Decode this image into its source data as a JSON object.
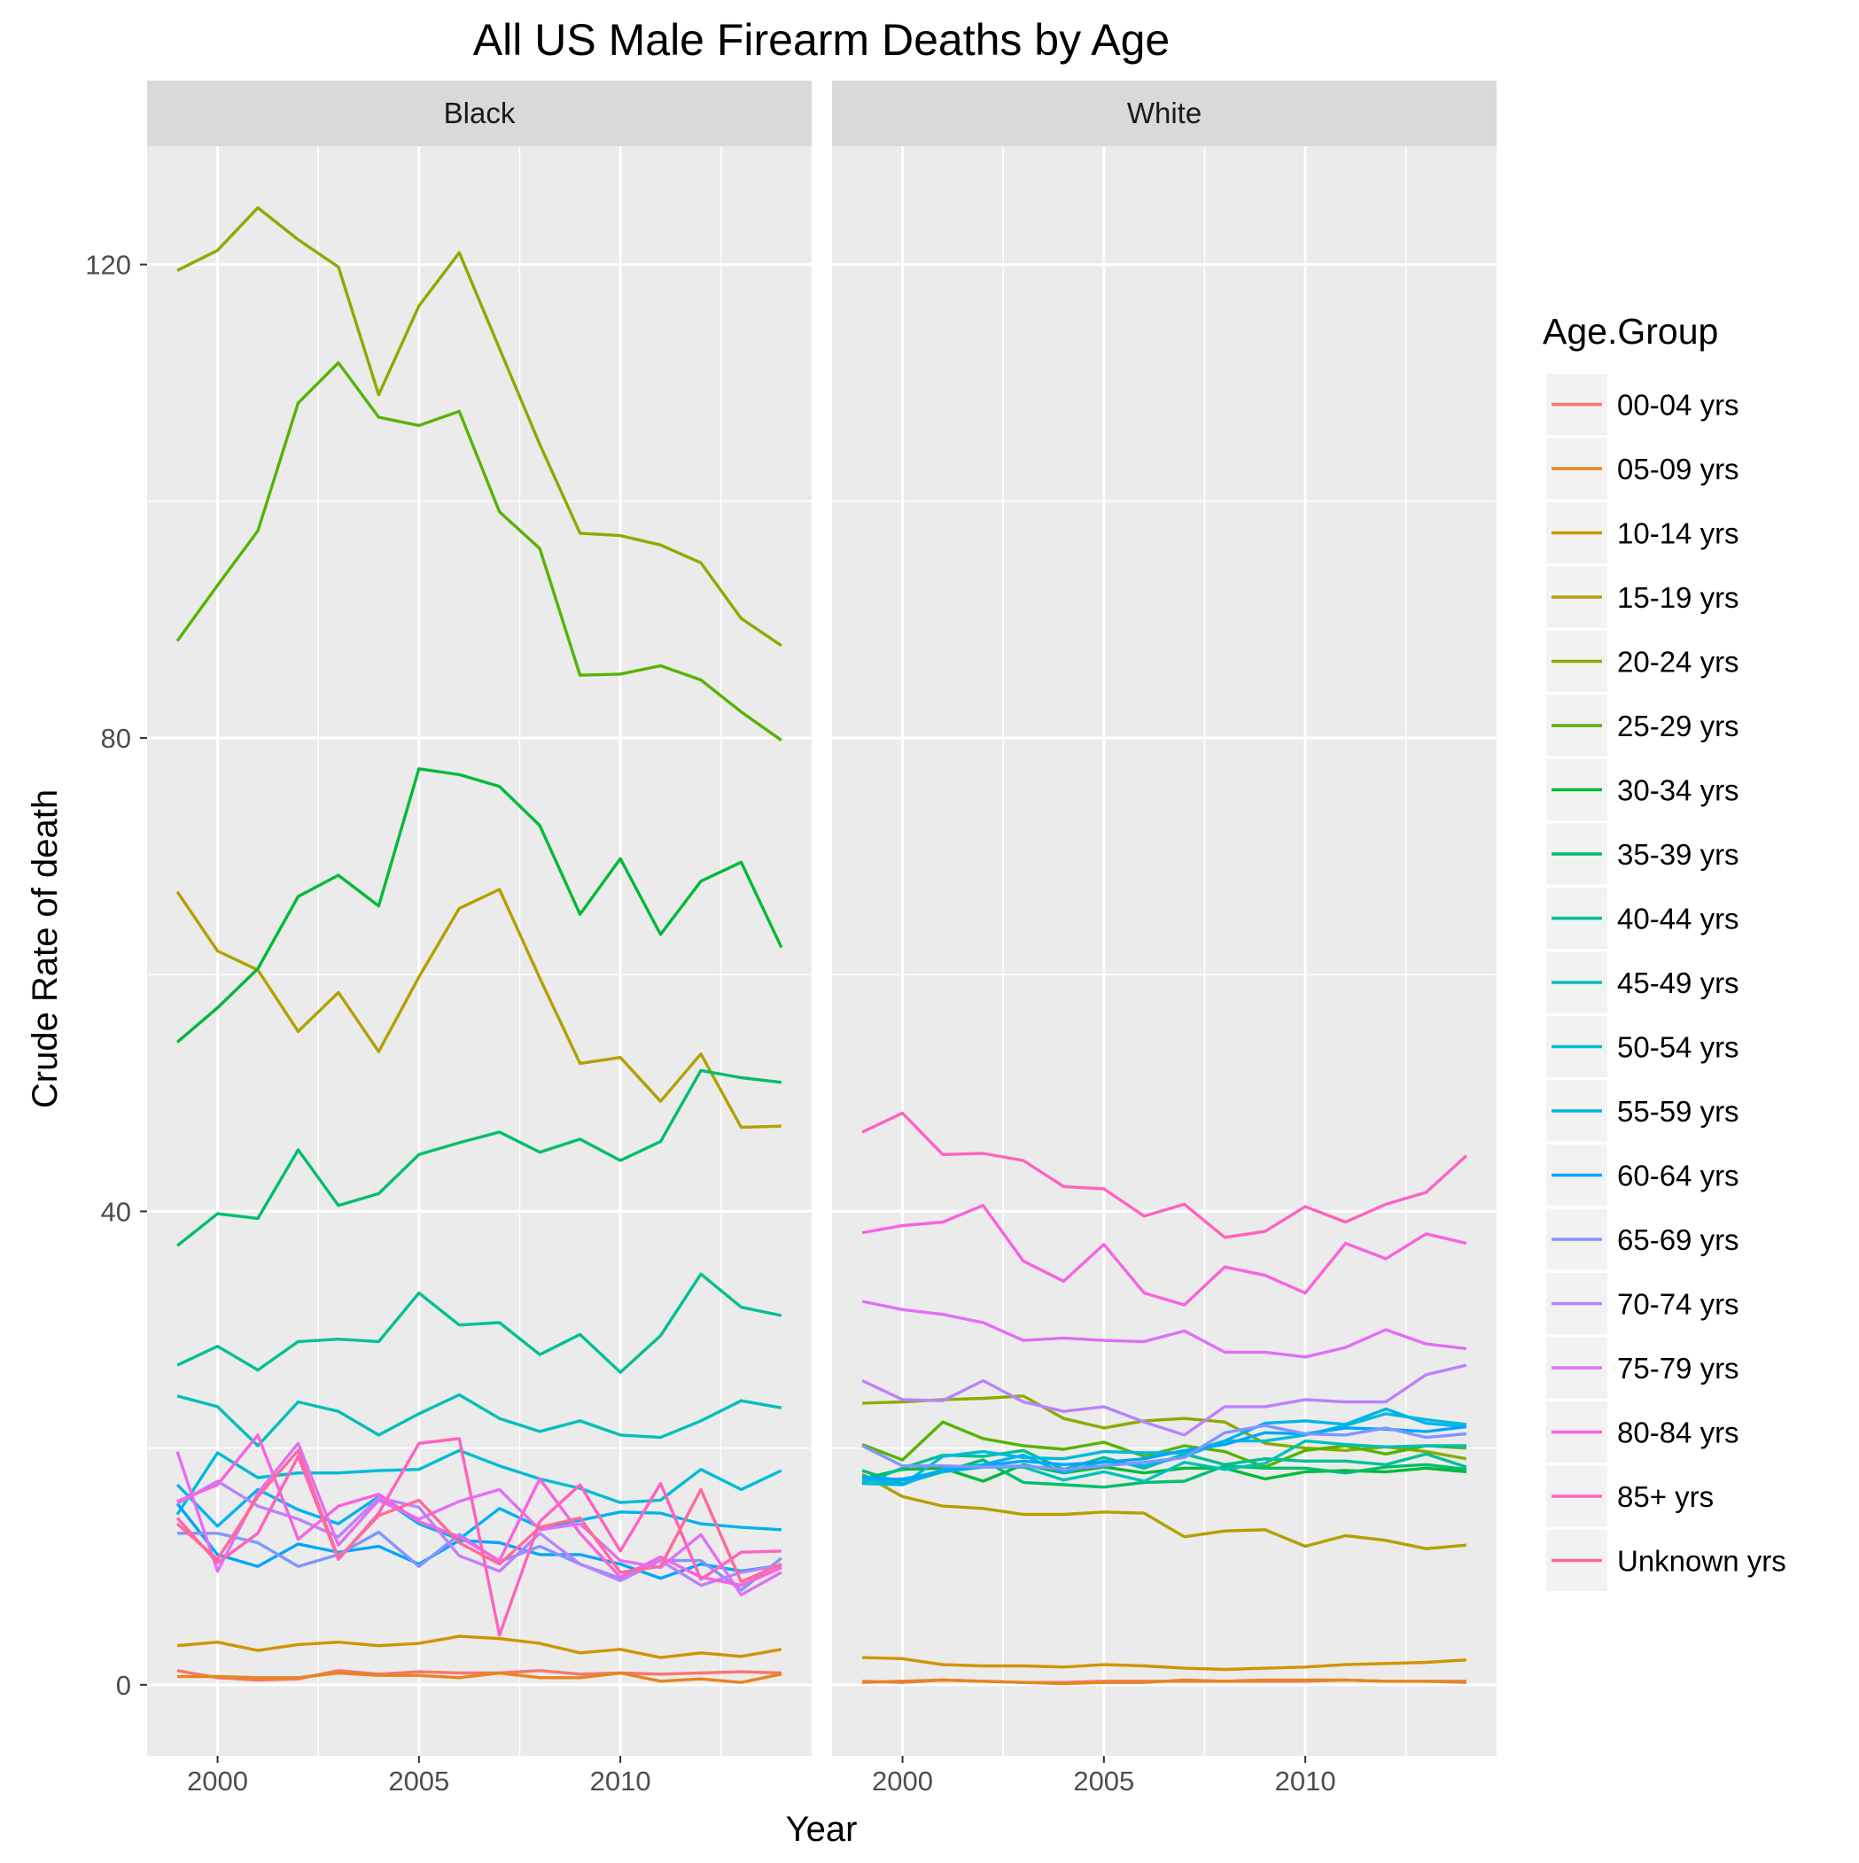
{
  "chart_data": {
    "type": "line",
    "title": "All US Male Firearm Deaths by Age",
    "xlabel": "Year",
    "ylabel": "Crude Rate of death",
    "xlim": [
      1998.25,
      2014.75
    ],
    "ylim": [
      -6,
      130
    ],
    "x_ticks": [
      2000,
      2005,
      2010
    ],
    "y_ticks": [
      0,
      40,
      80,
      120
    ],
    "grid": true,
    "legend_position": "right",
    "legend_title": "Age.Group",
    "x": [
      1999,
      2000,
      2001,
      2002,
      2003,
      2004,
      2005,
      2006,
      2007,
      2008,
      2009,
      2010,
      2011,
      2012,
      2013,
      2014
    ],
    "series_colors": {
      "00-04 yrs": "#F8766D",
      "05-09 yrs": "#E7851E",
      "10-14 yrs": "#D09400",
      "15-19 yrs": "#B2A100",
      "20-24 yrs": "#8BAB00",
      "25-29 yrs": "#55B400",
      "30-34 yrs": "#00BA38",
      "35-39 yrs": "#00BE6C",
      "40-44 yrs": "#00C094",
      "45-49 yrs": "#00C0B8",
      "50-54 yrs": "#00BCD6",
      "55-59 yrs": "#00B3EF",
      "60-64 yrs": "#00A5FF",
      "65-69 yrs": "#7F96FF",
      "70-74 yrs": "#BC81FF",
      "75-79 yrs": "#E26EF7",
      "80-84 yrs": "#F863DF",
      "85+ yrs": "#FF62BF",
      "Unknown yrs": "#FF6A98"
    },
    "panels": [
      {
        "label": "Black",
        "series": [
          {
            "name": "00-04 yrs",
            "values": [
              1.2,
              0.6,
              0.4,
              0.5,
              1.2,
              0.9,
              1.1,
              1.0,
              1.0,
              1.2,
              0.9,
              1.0,
              0.9,
              1.0,
              1.1,
              1.0
            ]
          },
          {
            "name": "05-09 yrs",
            "values": [
              0.7,
              0.7,
              0.6,
              0.6,
              1.0,
              0.8,
              0.8,
              0.6,
              1.0,
              0.6,
              0.6,
              1.0,
              0.3,
              0.5,
              0.2,
              0.9
            ]
          },
          {
            "name": "10-14 yrs",
            "values": [
              3.3,
              3.6,
              2.9,
              3.4,
              3.6,
              3.3,
              3.5,
              4.1,
              3.9,
              3.5,
              2.7,
              3.0,
              2.3,
              2.7,
              2.4,
              3.0
            ]
          },
          {
            "name": "15-19 yrs",
            "values": [
              67.0,
              62.0,
              60.4,
              55.2,
              58.5,
              53.5,
              59.8,
              65.6,
              67.2,
              59.7,
              52.5,
              53.0,
              49.3,
              53.3,
              47.1,
              47.2
            ]
          },
          {
            "name": "20-24 yrs",
            "values": [
              119.5,
              121.2,
              124.8,
              122.1,
              119.8,
              109.0,
              116.5,
              121.0,
              112.9,
              104.8,
              97.3,
              97.1,
              96.3,
              94.8,
              90.1,
              87.8
            ]
          },
          {
            "name": "25-29 yrs",
            "values": [
              88.2,
              92.9,
              97.5,
              108.3,
              111.7,
              107.1,
              106.4,
              107.6,
              99.1,
              96.0,
              85.3,
              85.4,
              86.1,
              84.9,
              82.2,
              79.8
            ]
          },
          {
            "name": "30-34 yrs",
            "values": [
              54.3,
              57.2,
              60.5,
              66.6,
              68.4,
              65.8,
              77.4,
              76.9,
              75.9,
              72.6,
              65.1,
              69.8,
              63.4,
              67.9,
              69.5,
              62.3
            ]
          },
          {
            "name": "35-39 yrs",
            "values": [
              37.1,
              39.8,
              39.4,
              45.2,
              40.5,
              41.5,
              44.8,
              45.8,
              46.7,
              45.0,
              46.1,
              44.3,
              45.9,
              51.9,
              51.3,
              50.9
            ]
          },
          {
            "name": "40-44 yrs",
            "values": [
              27.0,
              28.6,
              26.6,
              29.0,
              29.2,
              29.0,
              33.1,
              30.4,
              30.6,
              27.9,
              29.6,
              26.4,
              29.5,
              34.7,
              31.9,
              31.2
            ]
          },
          {
            "name": "45-49 yrs",
            "values": [
              24.4,
              23.5,
              20.2,
              23.9,
              23.1,
              21.1,
              22.9,
              24.5,
              22.5,
              21.4,
              22.3,
              21.1,
              20.9,
              22.3,
              24.0,
              23.4
            ]
          },
          {
            "name": "50-54 yrs",
            "values": [
              14.4,
              19.6,
              17.5,
              17.9,
              17.9,
              18.1,
              18.2,
              19.8,
              18.5,
              17.4,
              16.6,
              15.4,
              15.6,
              18.2,
              16.5,
              18.1
            ]
          },
          {
            "name": "55-59 yrs",
            "values": [
              16.9,
              13.4,
              16.5,
              14.8,
              13.6,
              15.9,
              13.6,
              12.3,
              14.9,
              13.3,
              13.9,
              14.6,
              14.5,
              13.6,
              13.3,
              13.1
            ]
          },
          {
            "name": "60-64 yrs",
            "values": [
              15.3,
              11.0,
              10.0,
              11.9,
              11.2,
              11.7,
              10.2,
              12.2,
              12.0,
              11.0,
              11.0,
              10.2,
              9.0,
              10.2,
              9.6,
              10.1
            ]
          },
          {
            "name": "65-69 yrs",
            "values": [
              12.8,
              12.8,
              12.0,
              10.0,
              11.0,
              12.9,
              10.0,
              12.7,
              10.4,
              11.7,
              10.2,
              9.0,
              10.5,
              10.5,
              8.0,
              10.7
            ]
          },
          {
            "name": "70-74 yrs",
            "values": [
              15.3,
              17.2,
              15.1,
              14.0,
              12.5,
              15.8,
              15.0,
              10.9,
              9.6,
              12.8,
              10.2,
              8.8,
              10.5,
              8.4,
              9.5,
              10.1
            ]
          },
          {
            "name": "75-79 yrs",
            "values": [
              19.7,
              9.6,
              16.2,
              20.4,
              11.8,
              15.6,
              14.0,
              15.5,
              16.5,
              13.1,
              13.6,
              10.5,
              9.9,
              12.7,
              7.6,
              9.5
            ]
          },
          {
            "name": "80-84 yrs",
            "values": [
              15.5,
              16.9,
              21.1,
              12.3,
              15.1,
              16.1,
              13.8,
              12.5,
              10.5,
              17.4,
              12.8,
              9.1,
              10.8,
              9.1,
              8.4,
              9.9
            ]
          },
          {
            "name": "85+ yrs",
            "values": [
              14.1,
              10.3,
              12.8,
              19.3,
              10.6,
              14.5,
              20.4,
              20.8,
              4.2,
              13.8,
              16.9,
              11.3,
              17.0,
              8.9,
              11.2,
              11.3
            ]
          },
          {
            "name": "Unknown yrs",
            "values": [
              13.6,
              10.6,
              15.9,
              19.8,
              10.7,
              14.3,
              15.6,
              12.0,
              10.2,
              13.3,
              14.1,
              9.5,
              10.0,
              16.5,
              8.7,
              10.2
            ]
          }
        ]
      },
      {
        "label": "White",
        "series": [
          {
            "name": "00-04 yrs",
            "values": [
              0.3,
              0.2,
              0.4,
              0.3,
              0.2,
              0.2,
              0.3,
              0.3,
              0.3,
              0.3,
              0.3,
              0.3,
              0.4,
              0.3,
              0.3,
              0.3
            ]
          },
          {
            "name": "05-09 yrs",
            "values": [
              0.2,
              0.3,
              0.4,
              0.3,
              0.2,
              0.1,
              0.2,
              0.2,
              0.4,
              0.3,
              0.4,
              0.4,
              0.4,
              0.3,
              0.3,
              0.2
            ]
          },
          {
            "name": "10-14 yrs",
            "values": [
              2.3,
              2.2,
              1.7,
              1.6,
              1.6,
              1.5,
              1.7,
              1.6,
              1.4,
              1.3,
              1.4,
              1.5,
              1.7,
              1.8,
              1.9,
              2.1
            ]
          },
          {
            "name": "15-19 yrs",
            "values": [
              17.8,
              15.9,
              15.1,
              14.9,
              14.4,
              14.4,
              14.6,
              14.5,
              12.5,
              13.0,
              13.1,
              11.7,
              12.6,
              12.2,
              11.5,
              11.8
            ]
          },
          {
            "name": "20-24 yrs",
            "values": [
              23.8,
              23.9,
              24.1,
              24.2,
              24.4,
              22.5,
              21.7,
              22.3,
              22.5,
              22.2,
              20.4,
              20.0,
              19.8,
              20.1,
              19.7,
              19.1
            ]
          },
          {
            "name": "25-29 yrs",
            "values": [
              20.3,
              19.0,
              22.2,
              20.8,
              20.2,
              19.9,
              20.5,
              19.3,
              20.2,
              19.7,
              18.4,
              19.8,
              20.2,
              19.5,
              20.2,
              20.0
            ]
          },
          {
            "name": "30-34 yrs",
            "values": [
              17.4,
              18.2,
              18.3,
              17.2,
              18.6,
              17.9,
              18.4,
              17.9,
              18.3,
              18.3,
              17.4,
              18.0,
              18.1,
              18.0,
              18.3,
              18.0
            ]
          },
          {
            "name": "35-39 yrs",
            "values": [
              18.1,
              17.0,
              18.0,
              19.0,
              17.1,
              16.9,
              16.7,
              17.1,
              17.2,
              18.5,
              18.3,
              18.3,
              17.9,
              18.4,
              18.6,
              18.2
            ]
          },
          {
            "name": "40-44 yrs",
            "values": [
              17.0,
              18.3,
              19.4,
              19.3,
              19.8,
              18.2,
              19.2,
              18.3,
              19.5,
              18.6,
              19.1,
              18.9,
              18.9,
              18.6,
              19.5,
              18.4
            ]
          },
          {
            "name": "45-49 yrs",
            "values": [
              17.2,
              17.4,
              18.0,
              18.4,
              18.4,
              17.3,
              18.0,
              17.2,
              18.8,
              18.2,
              18.7,
              20.6,
              20.3,
              20.1,
              20.2,
              20.2
            ]
          },
          {
            "name": "50-54 yrs",
            "values": [
              17.0,
              16.9,
              19.3,
              19.7,
              19.2,
              19.1,
              19.7,
              19.6,
              19.6,
              20.6,
              20.6,
              21.1,
              21.9,
              22.9,
              22.4,
              22.0
            ]
          },
          {
            "name": "55-59 yrs",
            "values": [
              17.5,
              16.9,
              18.2,
              18.6,
              19.4,
              17.9,
              18.9,
              18.5,
              19.3,
              20.6,
              22.1,
              22.3,
              22.0,
              23.3,
              22.1,
              21.8
            ]
          },
          {
            "name": "60-64 yrs",
            "values": [
              17.6,
              17.3,
              18.1,
              18.5,
              18.9,
              18.6,
              18.8,
              19.1,
              19.8,
              20.3,
              21.3,
              21.2,
              21.7,
              21.6,
              21.4,
              21.8
            ]
          },
          {
            "name": "65-69 yrs",
            "values": [
              20.2,
              18.5,
              18.5,
              18.4,
              18.5,
              18.2,
              18.5,
              18.8,
              19.2,
              21.3,
              21.9,
              21.2,
              21.1,
              21.7,
              20.9,
              21.2
            ]
          },
          {
            "name": "70-74 yrs",
            "values": [
              25.7,
              24.1,
              24.0,
              25.7,
              23.9,
              23.1,
              23.5,
              22.2,
              21.1,
              23.5,
              23.5,
              24.1,
              23.9,
              23.9,
              26.2,
              27.0
            ]
          },
          {
            "name": "75-79 yrs",
            "values": [
              32.4,
              31.7,
              31.3,
              30.6,
              29.1,
              29.3,
              29.1,
              29.0,
              29.9,
              28.1,
              28.1,
              27.7,
              28.5,
              30.0,
              28.8,
              28.4
            ]
          },
          {
            "name": "80-84 yrs",
            "values": [
              38.2,
              38.8,
              39.1,
              40.5,
              35.8,
              34.1,
              37.2,
              33.1,
              32.1,
              35.3,
              34.6,
              33.1,
              37.3,
              36.0,
              38.1,
              37.3
            ]
          },
          {
            "name": "85+ yrs",
            "values": [
              46.7,
              48.3,
              44.8,
              44.9,
              44.3,
              42.1,
              41.9,
              39.6,
              40.6,
              37.8,
              38.3,
              40.4,
              39.1,
              40.6,
              41.6,
              44.7
            ]
          },
          {
            "name": "Unknown yrs",
            "values": [
              null,
              null,
              null,
              null,
              null,
              null,
              null,
              null,
              null,
              null,
              null,
              null,
              null,
              null,
              null,
              null
            ]
          }
        ]
      }
    ]
  }
}
